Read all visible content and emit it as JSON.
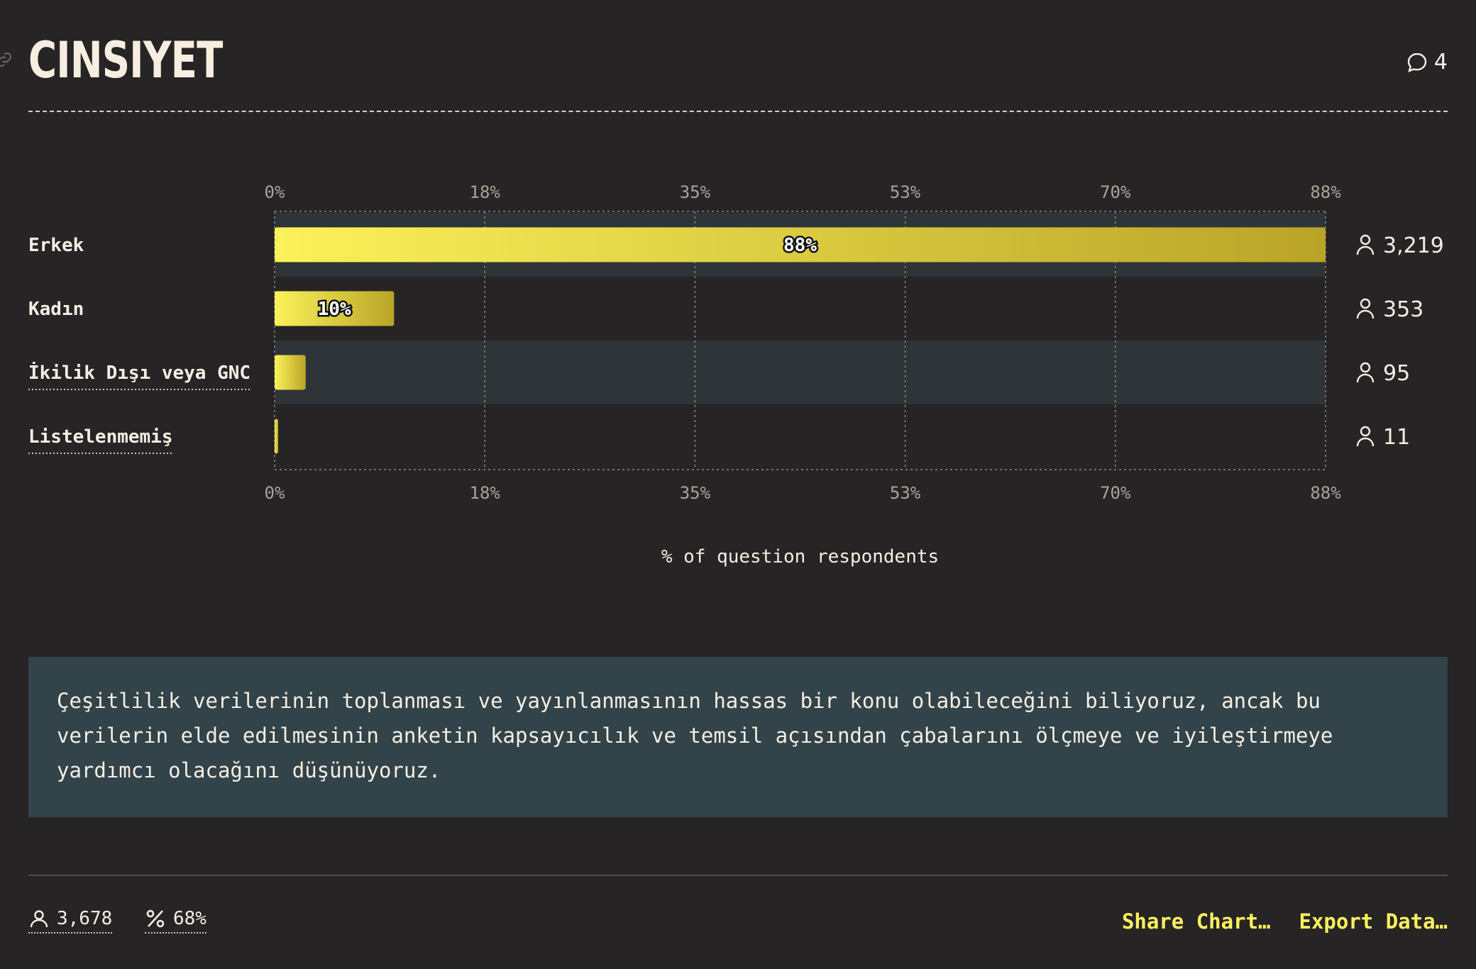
{
  "header": {
    "title": "CINSIYET",
    "comment_count": "4"
  },
  "chart_data": {
    "type": "bar",
    "orientation": "horizontal",
    "categories": [
      "Erkek",
      "Kadın",
      "İkilik Dışı veya GNC",
      "Listelenmemiş"
    ],
    "values": [
      88,
      10,
      2.6,
      0.3
    ],
    "value_labels": [
      "88%",
      "10%",
      "",
      ""
    ],
    "counts": [
      "3,219",
      "353",
      "95",
      "11"
    ],
    "xlim": [
      0,
      88
    ],
    "ticks": [
      "0%",
      "18%",
      "35%",
      "53%",
      "70%",
      "88%"
    ],
    "xlabel": "% of question respondents",
    "grid": true,
    "colors": {
      "bar_start": "#fbf25a",
      "bar_end": "#b9a428",
      "row_highlight": "#2e3437"
    }
  },
  "note": {
    "text": "Çeşitlilik verilerinin toplanması ve yayınlanmasının hassas bir konu olabileceğini biliyoruz, ancak bu verilerin elde edilmesinin anketin kapsayıcılık ve temsil açısından çabalarını ölçmeye ve iyileştirmeye yardımcı olacağını düşünüyoruz."
  },
  "footer": {
    "respondents": "3,678",
    "percent": "68%",
    "share_label": "Share Chart…",
    "export_label": "Export Data…"
  }
}
